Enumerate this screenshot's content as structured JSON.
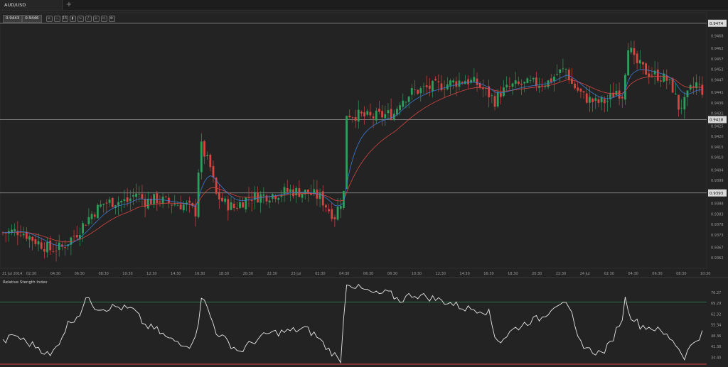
{
  "tab": {
    "title": "AUD/USD"
  },
  "toolbar": {
    "bid": "0.9443",
    "ask": "0.9446",
    "buttons": [
      {
        "name": "zoom-in-icon",
        "glyph": "+"
      },
      {
        "name": "zoom-out-icon",
        "glyph": "−"
      },
      {
        "name": "timeframe-icon",
        "glyph": "15"
      },
      {
        "name": "chart-type-icon",
        "glyph": "▮"
      },
      {
        "name": "indicators-icon",
        "glyph": "∿"
      },
      {
        "name": "drawing-icon",
        "glyph": "/"
      },
      {
        "name": "crosshair-icon",
        "glyph": "+"
      },
      {
        "name": "template-icon",
        "glyph": "▭"
      },
      {
        "name": "settings-icon",
        "glyph": "⚙"
      }
    ]
  },
  "colors": {
    "bull": "#2e9e5b",
    "bear": "#d64541",
    "ema_fast": "#3a7bd5",
    "ema_slow": "#d64541",
    "hline": "#9a9a9a",
    "rsi": "#e6e6e6",
    "rsi_upper": "#2e8b57",
    "rsi_lower": "#d64541"
  },
  "chart_data": [
    {
      "type": "candlestick",
      "symbol": "AUD/USD",
      "ylim": [
        0.9357,
        0.9479
      ],
      "y_ticks": [
        "0.9468",
        "0.9462",
        "0.9457",
        "0.9452",
        "0.9447",
        "0.9441",
        "0.9436",
        "0.9431",
        "0.9425",
        "0.9420",
        "0.9415",
        "0.9410",
        "0.9404",
        "0.9399",
        "0.9388",
        "0.9383",
        "0.9378",
        "0.9373",
        "0.9367",
        "0.9362"
      ],
      "x_ticks": [
        "21 Jul 2014",
        "02:30",
        "04:30",
        "06:30",
        "08:30",
        "10:30",
        "12:30",
        "14:30",
        "16:30",
        "18:30",
        "20:30",
        "22:30",
        "23 Jul",
        "02:30",
        "04:30",
        "06:30",
        "08:30",
        "10:30",
        "12:30",
        "14:30",
        "16:30",
        "18:30",
        "20:30",
        "22:30",
        "24 Jul",
        "02:30",
        "04:30",
        "06:30",
        "08:30",
        "10:30"
      ],
      "horizontal_lines": [
        {
          "value": 0.9474,
          "label": "0.9474"
        },
        {
          "value": 0.9428,
          "label": "0.9428"
        },
        {
          "value": 0.9393,
          "label": "0.9393"
        }
      ],
      "anchors": [
        [
          0,
          0.9374
        ],
        [
          6,
          0.9375
        ],
        [
          10,
          0.9371
        ],
        [
          16,
          0.9366
        ],
        [
          20,
          0.9367
        ],
        [
          25,
          0.9374
        ],
        [
          30,
          0.9383
        ],
        [
          34,
          0.9388
        ],
        [
          38,
          0.9389
        ],
        [
          42,
          0.9389
        ],
        [
          45,
          0.9393
        ],
        [
          48,
          0.9389
        ],
        [
          52,
          0.939
        ],
        [
          57,
          0.9388
        ],
        [
          62,
          0.9387
        ],
        [
          65,
          0.9384
        ],
        [
          66,
          0.9404
        ],
        [
          67,
          0.9415
        ],
        [
          70,
          0.9405
        ],
        [
          72,
          0.9392
        ],
        [
          75,
          0.9388
        ],
        [
          78,
          0.9386
        ],
        [
          83,
          0.9391
        ],
        [
          90,
          0.9392
        ],
        [
          97,
          0.9394
        ],
        [
          103,
          0.9393
        ],
        [
          107,
          0.9391
        ],
        [
          110,
          0.9385
        ],
        [
          112,
          0.9382
        ],
        [
          114,
          0.9389
        ],
        [
          115,
          0.9393
        ],
        [
          116,
          0.9431
        ],
        [
          120,
          0.943
        ],
        [
          124,
          0.9429
        ],
        [
          128,
          0.943
        ],
        [
          132,
          0.9431
        ],
        [
          134,
          0.9437
        ],
        [
          138,
          0.9441
        ],
        [
          143,
          0.9443
        ],
        [
          150,
          0.9445
        ],
        [
          156,
          0.9447
        ],
        [
          160,
          0.9445
        ],
        [
          164,
          0.944
        ],
        [
          166,
          0.9437
        ],
        [
          168,
          0.9441
        ],
        [
          172,
          0.9444
        ],
        [
          178,
          0.9445
        ],
        [
          184,
          0.9446
        ],
        [
          187,
          0.945
        ],
        [
          190,
          0.9452
        ],
        [
          192,
          0.9445
        ],
        [
          196,
          0.9439
        ],
        [
          200,
          0.9436
        ],
        [
          204,
          0.9437
        ],
        [
          207,
          0.9442
        ],
        [
          209,
          0.944
        ],
        [
          210,
          0.9452
        ],
        [
          211,
          0.9464
        ],
        [
          213,
          0.9456
        ],
        [
          217,
          0.9451
        ],
        [
          221,
          0.9449
        ],
        [
          224,
          0.9447
        ],
        [
          226,
          0.9443
        ],
        [
          228,
          0.9434
        ],
        [
          230,
          0.9436
        ],
        [
          232,
          0.9442
        ],
        [
          234,
          0.9445
        ],
        [
          236,
          0.9442
        ]
      ]
    },
    {
      "type": "line",
      "title": "Relative Stength Index",
      "ylim": [
        30,
        84
      ],
      "y_ticks": [
        "76.27",
        "69.29",
        "62.32",
        "55.34",
        "48.36",
        "41.38",
        "34.40"
      ],
      "levels": {
        "upper": 70,
        "lower": 30
      },
      "anchors": [
        [
          0,
          44
        ],
        [
          4,
          49
        ],
        [
          8,
          44
        ],
        [
          12,
          41
        ],
        [
          16,
          35
        ],
        [
          18,
          41
        ],
        [
          22,
          56
        ],
        [
          26,
          63
        ],
        [
          29,
          74
        ],
        [
          31,
          67
        ],
        [
          34,
          66
        ],
        [
          38,
          67
        ],
        [
          44,
          65
        ],
        [
          48,
          55
        ],
        [
          52,
          52
        ],
        [
          56,
          46
        ],
        [
          60,
          44
        ],
        [
          64,
          42
        ],
        [
          66,
          58
        ],
        [
          67,
          74
        ],
        [
          69,
          66
        ],
        [
          72,
          51
        ],
        [
          76,
          44
        ],
        [
          80,
          38
        ],
        [
          84,
          44
        ],
        [
          90,
          50
        ],
        [
          96,
          51
        ],
        [
          102,
          53
        ],
        [
          106,
          48
        ],
        [
          109,
          41
        ],
        [
          112,
          36
        ],
        [
          114,
          30
        ],
        [
          115,
          59
        ],
        [
          116,
          83
        ],
        [
          120,
          79
        ],
        [
          126,
          75
        ],
        [
          130,
          76
        ],
        [
          134,
          71
        ],
        [
          138,
          75
        ],
        [
          144,
          73
        ],
        [
          150,
          70
        ],
        [
          156,
          66
        ],
        [
          162,
          65
        ],
        [
          164,
          63
        ],
        [
          166,
          48
        ],
        [
          168,
          45
        ],
        [
          172,
          52
        ],
        [
          178,
          58
        ],
        [
          182,
          60
        ],
        [
          186,
          68
        ],
        [
          189,
          71
        ],
        [
          192,
          61
        ],
        [
          194,
          46
        ],
        [
          198,
          39
        ],
        [
          202,
          37
        ],
        [
          205,
          43
        ],
        [
          207,
          52
        ],
        [
          209,
          60
        ],
        [
          210,
          72
        ],
        [
          212,
          61
        ],
        [
          215,
          55
        ],
        [
          220,
          53
        ],
        [
          226,
          46
        ],
        [
          228,
          40
        ],
        [
          230,
          35
        ],
        [
          233,
          44
        ],
        [
          236,
          50
        ]
      ]
    }
  ]
}
